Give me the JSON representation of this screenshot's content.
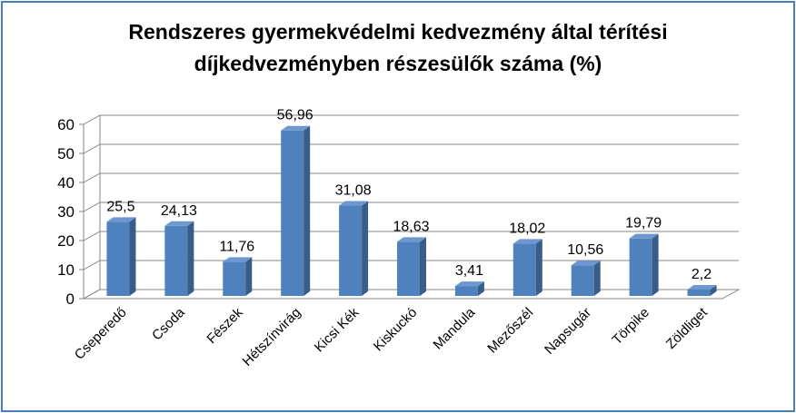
{
  "chart_data": {
    "type": "bar",
    "title_line1": "Rendszeres gyermekvédelmi kedvezmény által  térítési",
    "title_line2": "díjkedvezményben részesülők száma (%)",
    "categories": [
      "Cseperedő",
      "Csoda",
      "Fészek",
      "Hétszínvirág",
      "Kicsi Kék",
      "Kiskuckó",
      "Mandula",
      "Mezőszél",
      "Napsugár",
      "Törpike",
      "Zöldliget"
    ],
    "values": [
      25.5,
      24.13,
      11.76,
      56.96,
      31.08,
      18.63,
      3.41,
      18.02,
      10.56,
      19.79,
      2.2
    ],
    "value_labels": [
      "25,5",
      "24,13",
      "11,76",
      "56,96",
      "31,08",
      "18,63",
      "3,41",
      "18,02",
      "10,56",
      "19,79",
      "2,2"
    ],
    "yticks": [
      0,
      10,
      20,
      30,
      40,
      50,
      60
    ],
    "ylim": [
      0,
      60
    ],
    "grid": true,
    "bar_color": "#4f81bd",
    "bar_side_color": "#385d8a",
    "bar_top_color": "#6d97cf"
  }
}
